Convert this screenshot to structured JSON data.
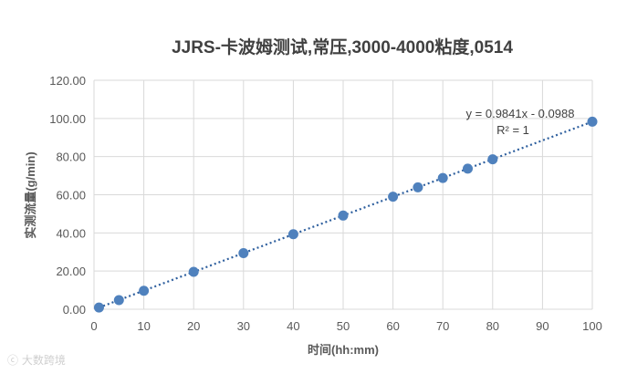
{
  "chart_data": {
    "type": "scatter",
    "title": "JJRS-卡波姆测试,常压,3000-4000粘度,0514",
    "xlabel": "时间(hh:mm)",
    "ylabel": "实测流量(g/min)",
    "xlim": [
      0,
      100
    ],
    "ylim": [
      0,
      120
    ],
    "x_ticks": [
      "0",
      "10",
      "20",
      "30",
      "40",
      "50",
      "60",
      "70",
      "80",
      "90",
      "100"
    ],
    "y_ticks": [
      "0.00",
      "20.00",
      "40.00",
      "60.00",
      "80.00",
      "100.00",
      "120.00"
    ],
    "grid": true,
    "series": [
      {
        "x": [
          1,
          5,
          10,
          20,
          30,
          40,
          50,
          60,
          65,
          70,
          75,
          80,
          100
        ],
        "y": [
          0.9,
          4.8,
          9.7,
          19.6,
          29.4,
          39.3,
          49.1,
          59.0,
          63.9,
          68.8,
          73.7,
          78.6,
          98.3
        ],
        "color": "#4f81bd"
      }
    ],
    "trendline": {
      "type": "linear",
      "slope": 0.9841,
      "intercept": -0.0988,
      "color": "#2e5f9e",
      "equation": "y = 0.9841x - 0.0988",
      "r2": "R² = 1"
    }
  },
  "watermark": "大数跨境"
}
